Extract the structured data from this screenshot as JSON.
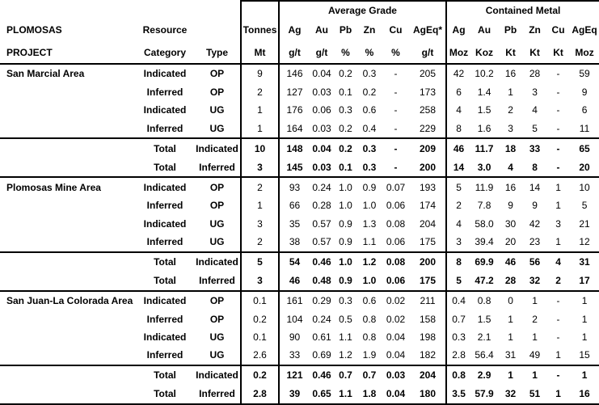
{
  "table": {
    "group_headers": {
      "average_grade": "Average Grade",
      "contained_metal": "Contained Metal"
    },
    "columns": {
      "project": {
        "line1": "PLOMOSAS",
        "line2": "PROJECT"
      },
      "category": {
        "line1": "Resource",
        "line2": "Category"
      },
      "type": {
        "line1": "",
        "line2": "Type"
      },
      "tonnes": {
        "line1": "Tonnes",
        "line2": "Mt"
      },
      "grade": [
        {
          "name": "Ag",
          "unit": "g/t"
        },
        {
          "name": "Au",
          "unit": "g/t"
        },
        {
          "name": "Pb",
          "unit": "%"
        },
        {
          "name": "Zn",
          "unit": "%"
        },
        {
          "name": "Cu",
          "unit": "%"
        },
        {
          "name": "AgEq*",
          "unit": "g/t"
        }
      ],
      "metal": [
        {
          "name": "Ag",
          "unit": "Moz"
        },
        {
          "name": "Au",
          "unit": "Koz"
        },
        {
          "name": "Pb",
          "unit": "Kt"
        },
        {
          "name": "Zn",
          "unit": "Kt"
        },
        {
          "name": "Cu",
          "unit": "Kt"
        },
        {
          "name": "AgEq",
          "unit": "Moz"
        }
      ]
    },
    "rows": [
      {
        "area": "San Marcial Area",
        "category": "Indicated",
        "type": "OP",
        "tonnes": "9",
        "grade": [
          "146",
          "0.04",
          "0.2",
          "0.3",
          "-",
          "205"
        ],
        "metal": [
          "42",
          "10.2",
          "16",
          "28",
          "-",
          "59"
        ],
        "total": false,
        "group_end": false
      },
      {
        "area": "",
        "category": "Inferred",
        "type": "OP",
        "tonnes": "2",
        "grade": [
          "127",
          "0.03",
          "0.1",
          "0.2",
          "-",
          "173"
        ],
        "metal": [
          "6",
          "1.4",
          "1",
          "3",
          "-",
          "9"
        ],
        "total": false,
        "group_end": false
      },
      {
        "area": "",
        "category": "Indicated",
        "type": "UG",
        "tonnes": "1",
        "grade": [
          "176",
          "0.06",
          "0.3",
          "0.6",
          "-",
          "258"
        ],
        "metal": [
          "4",
          "1.5",
          "2",
          "4",
          "-",
          "6"
        ],
        "total": false,
        "group_end": false
      },
      {
        "area": "",
        "category": "Inferred",
        "type": "UG",
        "tonnes": "1",
        "grade": [
          "164",
          "0.03",
          "0.2",
          "0.4",
          "-",
          "229"
        ],
        "metal": [
          "8",
          "1.6",
          "3",
          "5",
          "-",
          "11"
        ],
        "total": false,
        "group_end": true
      },
      {
        "area": "",
        "category": "Total",
        "type": "Indicated",
        "tonnes": "10",
        "grade": [
          "148",
          "0.04",
          "0.2",
          "0.3",
          "-",
          "209"
        ],
        "metal": [
          "46",
          "11.7",
          "18",
          "33",
          "-",
          "65"
        ],
        "total": true,
        "group_end": false
      },
      {
        "area": "",
        "category": "Total",
        "type": "Inferred",
        "tonnes": "3",
        "grade": [
          "145",
          "0.03",
          "0.1",
          "0.3",
          "-",
          "200"
        ],
        "metal": [
          "14",
          "3.0",
          "4",
          "8",
          "-",
          "20"
        ],
        "total": true,
        "group_end": true
      },
      {
        "area": "Plomosas Mine Area",
        "category": "Indicated",
        "type": "OP",
        "tonnes": "2",
        "grade": [
          "93",
          "0.24",
          "1.0",
          "0.9",
          "0.07",
          "193"
        ],
        "metal": [
          "5",
          "11.9",
          "16",
          "14",
          "1",
          "10"
        ],
        "total": false,
        "group_end": false
      },
      {
        "area": "",
        "category": "Inferred",
        "type": "OP",
        "tonnes": "1",
        "grade": [
          "66",
          "0.28",
          "1.0",
          "1.0",
          "0.06",
          "174"
        ],
        "metal": [
          "2",
          "7.8",
          "9",
          "9",
          "1",
          "5"
        ],
        "total": false,
        "group_end": false
      },
      {
        "area": "",
        "category": "Indicated",
        "type": "UG",
        "tonnes": "3",
        "grade": [
          "35",
          "0.57",
          "0.9",
          "1.3",
          "0.08",
          "204"
        ],
        "metal": [
          "4",
          "58.0",
          "30",
          "42",
          "3",
          "21"
        ],
        "total": false,
        "group_end": false
      },
      {
        "area": "",
        "category": "Inferred",
        "type": "UG",
        "tonnes": "2",
        "grade": [
          "38",
          "0.57",
          "0.9",
          "1.1",
          "0.06",
          "175"
        ],
        "metal": [
          "3",
          "39.4",
          "20",
          "23",
          "1",
          "12"
        ],
        "total": false,
        "group_end": true
      },
      {
        "area": "",
        "category": "Total",
        "type": "Indicated",
        "tonnes": "5",
        "grade": [
          "54",
          "0.46",
          "1.0",
          "1.2",
          "0.08",
          "200"
        ],
        "metal": [
          "8",
          "69.9",
          "46",
          "56",
          "4",
          "31"
        ],
        "total": true,
        "group_end": false
      },
      {
        "area": "",
        "category": "Total",
        "type": "Inferred",
        "tonnes": "3",
        "grade": [
          "46",
          "0.48",
          "0.9",
          "1.0",
          "0.06",
          "175"
        ],
        "metal": [
          "5",
          "47.2",
          "28",
          "32",
          "2",
          "17"
        ],
        "total": true,
        "group_end": true
      },
      {
        "area": "San Juan-La Colorada Area",
        "category": "Indicated",
        "type": "OP",
        "tonnes": "0.1",
        "grade": [
          "161",
          "0.29",
          "0.3",
          "0.6",
          "0.02",
          "211"
        ],
        "metal": [
          "0.4",
          "0.8",
          "0",
          "1",
          "-",
          "1"
        ],
        "total": false,
        "group_end": false
      },
      {
        "area": "",
        "category": "Inferred",
        "type": "OP",
        "tonnes": "0.2",
        "grade": [
          "104",
          "0.24",
          "0.5",
          "0.8",
          "0.02",
          "158"
        ],
        "metal": [
          "0.7",
          "1.5",
          "1",
          "2",
          "-",
          "1"
        ],
        "total": false,
        "group_end": false
      },
      {
        "area": "",
        "category": "Indicated",
        "type": "UG",
        "tonnes": "0.1",
        "grade": [
          "90",
          "0.61",
          "1.1",
          "0.8",
          "0.04",
          "198"
        ],
        "metal": [
          "0.3",
          "2.1",
          "1",
          "1",
          "-",
          "1"
        ],
        "total": false,
        "group_end": false
      },
      {
        "area": "",
        "category": "Inferred",
        "type": "UG",
        "tonnes": "2.6",
        "grade": [
          "33",
          "0.69",
          "1.2",
          "1.9",
          "0.04",
          "182"
        ],
        "metal": [
          "2.8",
          "56.4",
          "31",
          "49",
          "1",
          "15"
        ],
        "total": false,
        "group_end": true
      },
      {
        "area": "",
        "category": "Total",
        "type": "Indicated",
        "tonnes": "0.2",
        "grade": [
          "121",
          "0.46",
          "0.7",
          "0.7",
          "0.03",
          "204"
        ],
        "metal": [
          "0.8",
          "2.9",
          "1",
          "1",
          "-",
          "1"
        ],
        "total": true,
        "group_end": false
      },
      {
        "area": "",
        "category": "Total",
        "type": "Inferred",
        "tonnes": "2.8",
        "grade": [
          "39",
          "0.65",
          "1.1",
          "1.8",
          "0.04",
          "180"
        ],
        "metal": [
          "3.5",
          "57.9",
          "32",
          "51",
          "1",
          "16"
        ],
        "total": true,
        "group_end": false
      }
    ]
  }
}
